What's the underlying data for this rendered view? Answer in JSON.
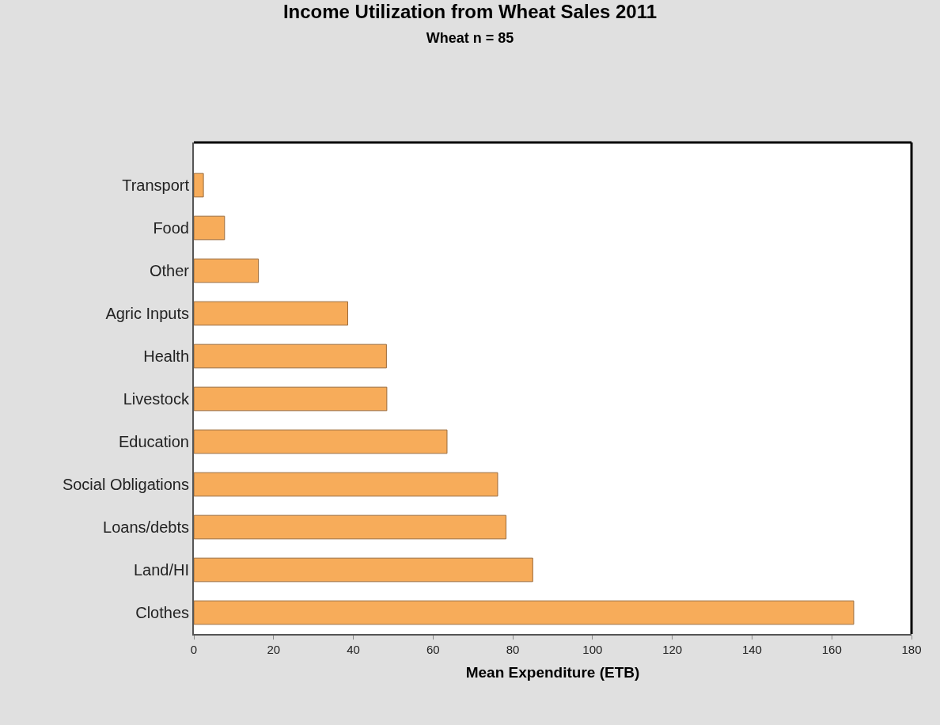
{
  "chart_data": {
    "type": "bar",
    "orientation": "horizontal",
    "title": "Income Utilization from Wheat Sales 2011",
    "subtitle": "Wheat n = 85",
    "xlabel": "Mean Expenditure (ETB)",
    "categories": [
      "Transport",
      "Food",
      "Other",
      "Agric Inputs",
      "Health",
      "Livestock",
      "Education",
      "Social Obligations",
      "Loans/debts",
      "Land/HI",
      "Clothes"
    ],
    "values": [
      2.4,
      7.7,
      16.2,
      38.6,
      48.3,
      48.4,
      63.5,
      76.2,
      78.3,
      85.0,
      165.5
    ],
    "color": "#f7ac5a",
    "xlim": [
      0,
      180
    ],
    "xticks": [
      0,
      20,
      40,
      60,
      80,
      100,
      120,
      140,
      160,
      180
    ],
    "legend": false
  }
}
